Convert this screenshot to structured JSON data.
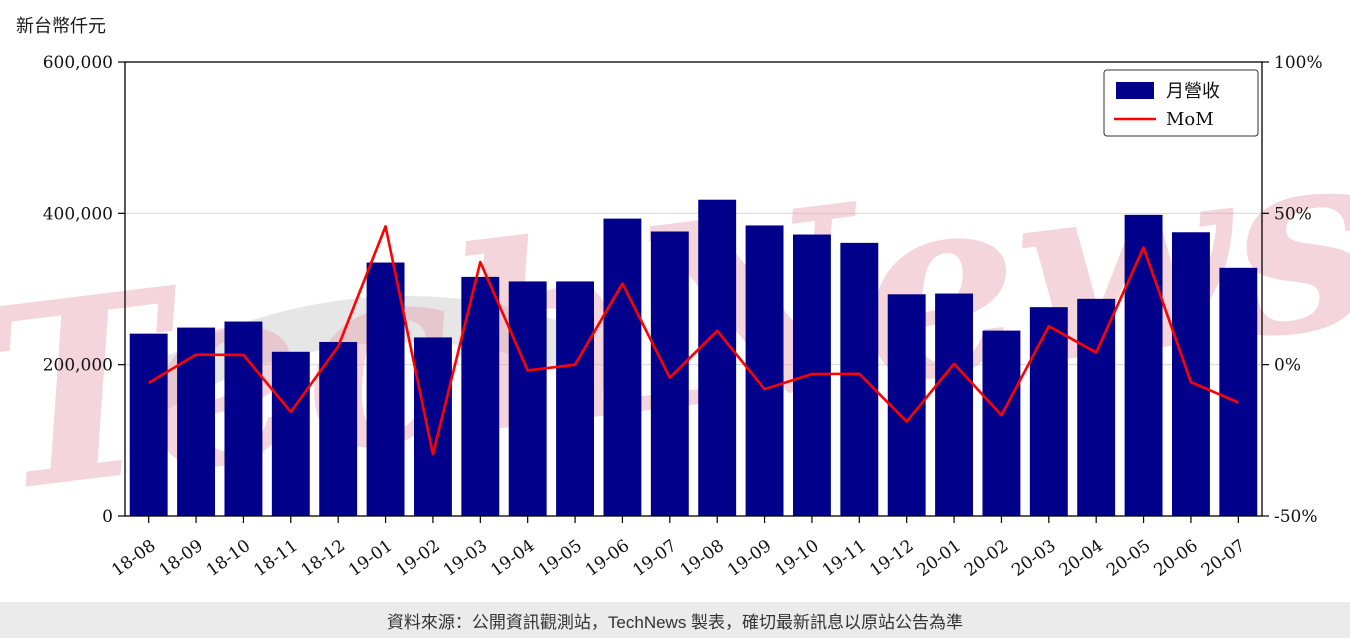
{
  "title": "新台幣仟元",
  "watermark": "TechNews",
  "footer": "資料來源：公開資訊觀測站，TechNews 製表，確切最新訊息以原站公告為準",
  "colors": {
    "bar": "#00008b",
    "line": "#ff0000",
    "watermark": "#e8a3b0",
    "swoosh": "#e6e6e6",
    "grid": "#d9d9d9",
    "footer_bg": "#ebebeb",
    "axis_text": "#111111"
  },
  "chart_data": {
    "type": "bar+line",
    "title": "新台幣仟元",
    "grid": true,
    "legend_position": "upper right",
    "categories": [
      "18-08",
      "18-09",
      "18-10",
      "18-11",
      "18-12",
      "19-01",
      "19-02",
      "19-03",
      "19-04",
      "19-05",
      "19-06",
      "19-07",
      "19-08",
      "19-09",
      "19-10",
      "19-11",
      "19-12",
      "20-01",
      "20-02",
      "20-03",
      "20-04",
      "20-05",
      "20-06",
      "20-07"
    ],
    "series": [
      {
        "name": "月營收",
        "type": "bar",
        "axis": "left",
        "values": [
          241000,
          249000,
          257000,
          217000,
          230000,
          335000,
          236000,
          316000,
          310000,
          310000,
          393000,
          376000,
          418000,
          384000,
          372000,
          361000,
          293000,
          294000,
          245000,
          276000,
          287000,
          398000,
          375000,
          328000
        ]
      },
      {
        "name": "MoM",
        "type": "line",
        "axis": "right",
        "values": [
          -6,
          3.3,
          3.2,
          -15.6,
          6.0,
          45.7,
          -29.6,
          33.9,
          -1.9,
          0,
          26.8,
          -4.3,
          11.2,
          -8.1,
          -3.1,
          -3.0,
          -18.8,
          0.3,
          -16.7,
          12.7,
          4.0,
          38.7,
          -5.8,
          -12.5
        ]
      }
    ],
    "left_axis": {
      "label": "新台幣仟元",
      "range": [
        0,
        600000
      ],
      "ticks_values": [
        0,
        200000,
        400000,
        600000
      ],
      "ticks": [
        "0",
        "200,000",
        "400,000",
        "600,000"
      ]
    },
    "right_axis": {
      "range": [
        -50,
        100
      ],
      "ticks_values": [
        -50,
        0,
        50,
        100
      ],
      "ticks": [
        "-50%",
        "0%",
        "50%",
        "100%"
      ]
    }
  }
}
